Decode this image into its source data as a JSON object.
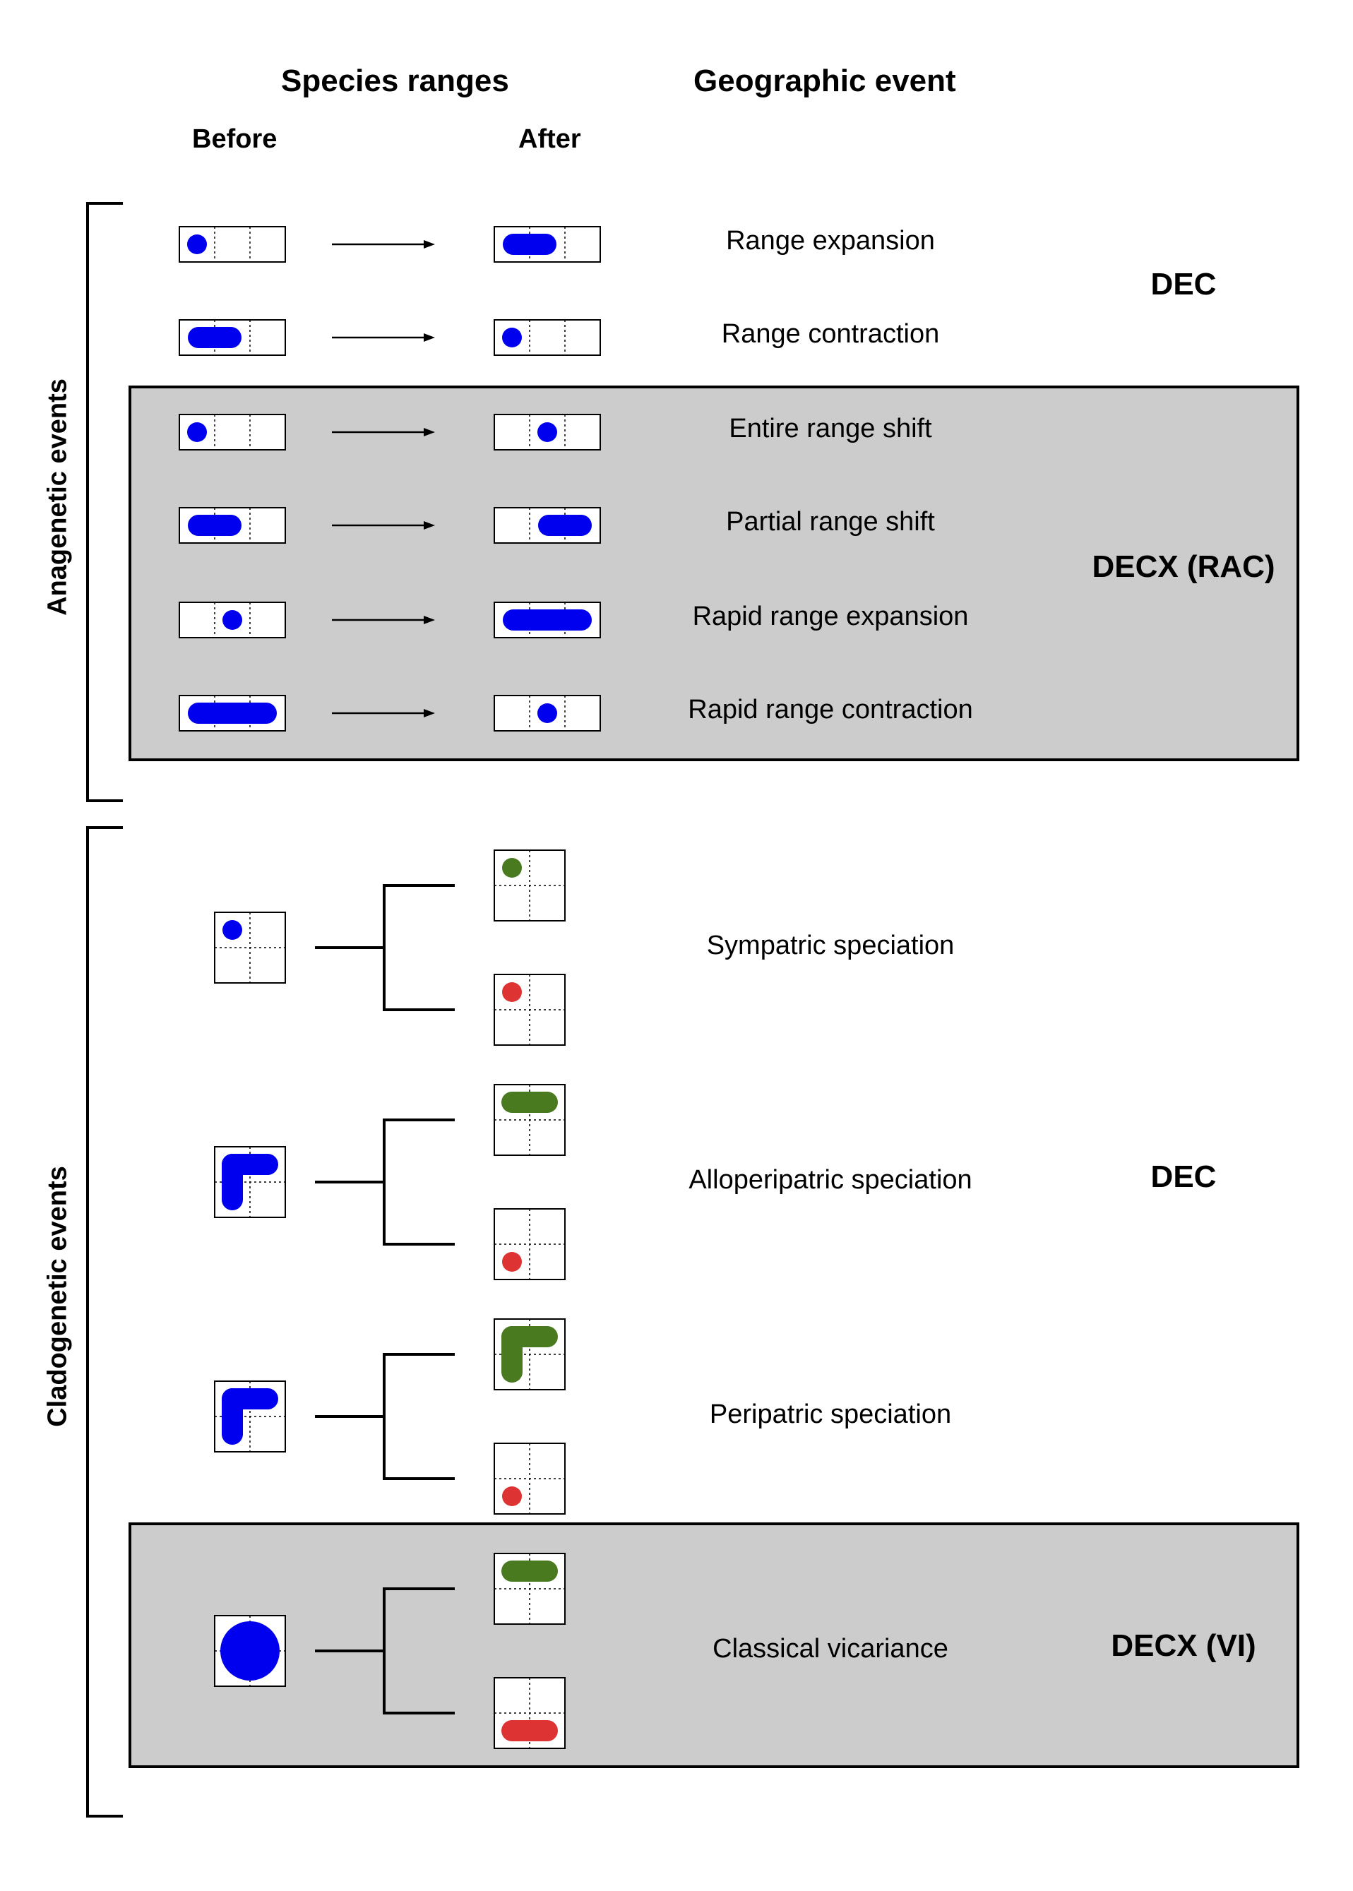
{
  "headers": {
    "species_ranges": "Species ranges",
    "geographic_event": "Geographic event",
    "before": "Before",
    "after": "After"
  },
  "groups": {
    "anagenetic": "Anagenetic events",
    "cladogenetic": "Cladogenetic events"
  },
  "events": {
    "range_expansion": "Range expansion",
    "range_contraction": "Range contraction",
    "entire_range_shift": "Entire range shift",
    "partial_range_shift": "Partial range shift",
    "rapid_range_expansion": "Rapid range expansion",
    "rapid_range_contraction": "Rapid range contraction",
    "sympatric_speciation": "Sympatric speciation",
    "alloperipatric_speciation": "Alloperipatric speciation",
    "peripatric_speciation": "Peripatric speciation",
    "classical_vicariance": "Classical vicariance"
  },
  "models": {
    "dec_anagenetic": "DEC",
    "decx_rac": "DECX (RAC)",
    "dec_cladogenetic": "DEC",
    "decx_vi": "DECX (VI)"
  },
  "colors": {
    "ancestral_range": "#0000ee",
    "daughter_one": "#4a7a1f",
    "daughter_two": "#dd3333",
    "highlight_box": "#cccccc",
    "line": "#000000"
  }
}
